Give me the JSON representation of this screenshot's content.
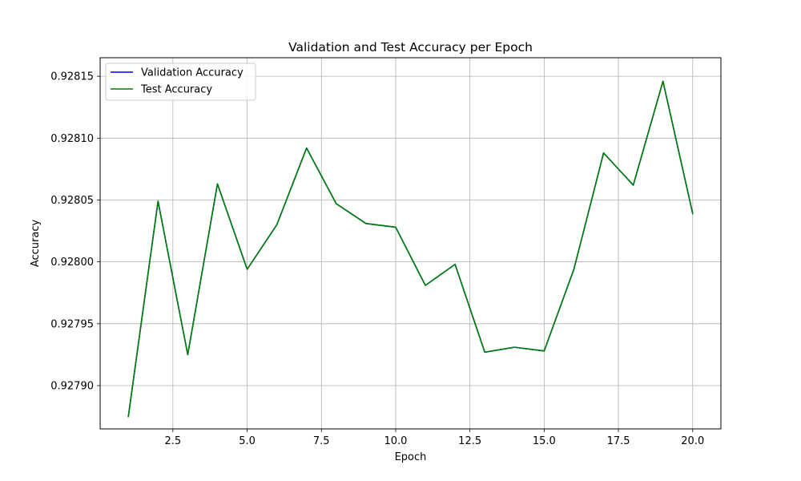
{
  "chart_data": {
    "type": "line",
    "title": "Validation and Test Accuracy per Epoch",
    "xlabel": "Epoch",
    "ylabel": "Accuracy",
    "xlim": [
      0.05,
      20.95
    ],
    "ylim": [
      0.927865,
      0.928165
    ],
    "x_ticks": [
      2.5,
      5.0,
      7.5,
      10.0,
      12.5,
      15.0,
      17.5,
      20.0
    ],
    "x_tick_labels": [
      "2.5",
      "5.0",
      "7.5",
      "10.0",
      "12.5",
      "15.0",
      "17.5",
      "20.0"
    ],
    "y_ticks": [
      0.9279,
      0.92795,
      0.928,
      0.92805,
      0.9281,
      0.92815
    ],
    "y_tick_labels": [
      "0.92790",
      "0.92795",
      "0.92800",
      "0.92805",
      "0.92810",
      "0.92815"
    ],
    "grid": true,
    "legend_position": "top-left",
    "x": [
      1,
      2,
      3,
      4,
      5,
      6,
      7,
      8,
      9,
      10,
      11,
      12,
      13,
      14,
      15,
      16,
      17,
      18,
      19,
      20
    ],
    "series": [
      {
        "name": "Validation Accuracy",
        "color": "#0000ff",
        "values": [
          0.927875,
          0.928049,
          0.927925,
          0.928063,
          0.927994,
          0.92803,
          0.928092,
          0.928047,
          0.928031,
          0.928028,
          0.927981,
          0.927998,
          0.927927,
          0.927931,
          0.927928,
          0.927994,
          0.928088,
          0.928062,
          0.928146,
          0.928039
        ]
      },
      {
        "name": "Test Accuracy",
        "color": "#008000",
        "values": [
          0.927875,
          0.928049,
          0.927925,
          0.928063,
          0.927994,
          0.92803,
          0.928092,
          0.928047,
          0.928031,
          0.928028,
          0.927981,
          0.927998,
          0.927927,
          0.927931,
          0.927928,
          0.927994,
          0.928088,
          0.928062,
          0.928146,
          0.928039
        ]
      }
    ]
  }
}
